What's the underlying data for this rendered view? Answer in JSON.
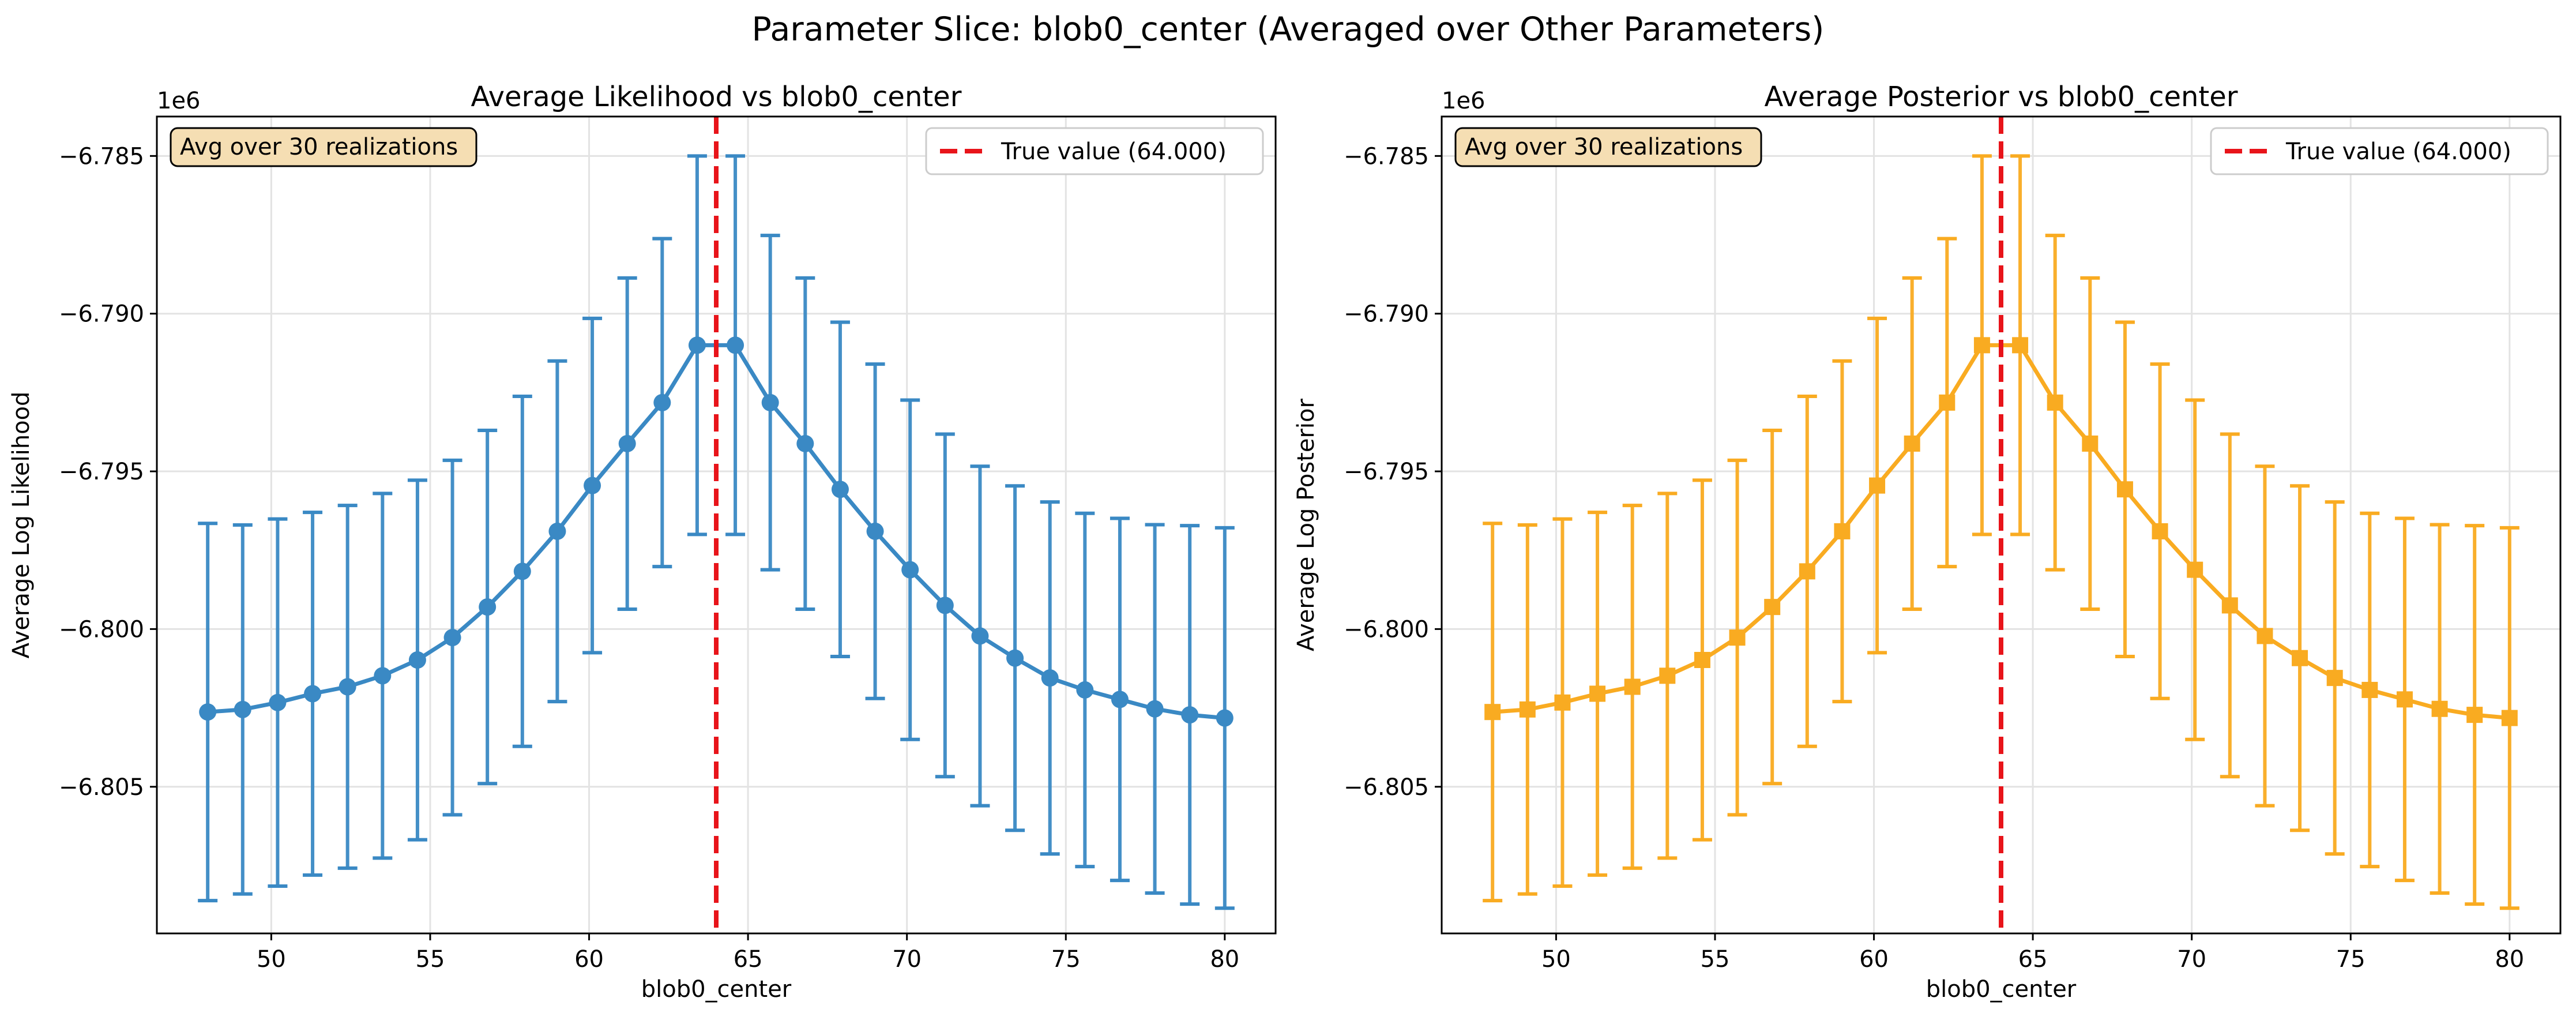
{
  "suptitle": "Parameter Slice: blob0_center (Averaged over Other Parameters)",
  "chart_data": [
    {
      "type": "line",
      "title": "Average Likelihood vs blob0_center",
      "xlabel": "blob0_center",
      "ylabel": "Average Log Likelihood",
      "offset_text": "1e6",
      "xlim": [
        46.4,
        81.6
      ],
      "ylim": [
        -6.80965,
        -6.78375
      ],
      "xticks": [
        50,
        55,
        60,
        65,
        70,
        75,
        80
      ],
      "yticks": [
        -6.805,
        -6.8,
        -6.795,
        -6.79,
        -6.785
      ],
      "ytick_labels": [
        "−6.805",
        "−6.800",
        "−6.795",
        "−6.790",
        "−6.785"
      ],
      "grid": true,
      "legend_position": "top-right",
      "annotation": "Avg over 30 realizations",
      "color": "#3a89c4",
      "marker": "circle",
      "x": [
        48.0,
        49.1,
        50.2,
        51.3,
        52.4,
        53.5,
        54.6,
        55.7,
        56.8,
        57.9,
        59.0,
        60.1,
        61.2,
        62.3,
        63.4,
        64.6,
        65.7,
        66.8,
        67.9,
        69.0,
        70.1,
        71.2,
        72.3,
        73.4,
        74.5,
        75.6,
        76.7,
        77.8,
        78.9,
        80.0
      ],
      "y": [
        -6.80263,
        -6.80255,
        -6.80233,
        -6.80205,
        -6.80183,
        -6.80148,
        -6.80098,
        -6.80027,
        -6.7993,
        -6.79817,
        -6.7969,
        -6.79545,
        -6.79412,
        -6.79282,
        -6.791,
        -6.791,
        -6.79282,
        -6.79412,
        -6.79557,
        -6.7969,
        -6.79812,
        -6.79925,
        -6.80022,
        -6.80092,
        -6.80155,
        -6.80193,
        -6.80223,
        -6.80253,
        -6.80272,
        -6.80282
      ],
      "yerr": [
        0.00598,
        0.00585,
        0.00582,
        0.00575,
        0.00575,
        0.00578,
        0.0057,
        0.00562,
        0.0056,
        0.00555,
        0.0054,
        0.0053,
        0.00525,
        0.0052,
        0.006,
        0.006,
        0.0053,
        0.00525,
        0.0053,
        0.0053,
        0.00538,
        0.00543,
        0.00538,
        0.00546,
        0.00558,
        0.0056,
        0.00574,
        0.00584,
        0.006,
        0.00603
      ],
      "reference_line": {
        "x": 64.0,
        "color": "#e8141a",
        "label": "True value (64.000)"
      }
    },
    {
      "type": "line",
      "title": "Average Posterior vs blob0_center",
      "xlabel": "blob0_center",
      "ylabel": "Average Log Posterior",
      "offset_text": "1e6",
      "xlim": [
        46.4,
        81.6
      ],
      "ylim": [
        -6.80965,
        -6.78375
      ],
      "xticks": [
        50,
        55,
        60,
        65,
        70,
        75,
        80
      ],
      "yticks": [
        -6.805,
        -6.8,
        -6.795,
        -6.79,
        -6.785
      ],
      "ytick_labels": [
        "−6.805",
        "−6.800",
        "−6.795",
        "−6.790",
        "−6.785"
      ],
      "grid": true,
      "legend_position": "top-right",
      "annotation": "Avg over 30 realizations",
      "color": "#f9ab21",
      "marker": "square",
      "x": [
        48.0,
        49.1,
        50.2,
        51.3,
        52.4,
        53.5,
        54.6,
        55.7,
        56.8,
        57.9,
        59.0,
        60.1,
        61.2,
        62.3,
        63.4,
        64.6,
        65.7,
        66.8,
        67.9,
        69.0,
        70.1,
        71.2,
        72.3,
        73.4,
        74.5,
        75.6,
        76.7,
        77.8,
        78.9,
        80.0
      ],
      "y": [
        -6.80263,
        -6.80255,
        -6.80233,
        -6.80205,
        -6.80183,
        -6.80148,
        -6.80098,
        -6.80027,
        -6.7993,
        -6.79817,
        -6.7969,
        -6.79545,
        -6.79412,
        -6.79282,
        -6.791,
        -6.791,
        -6.79282,
        -6.79412,
        -6.79557,
        -6.7969,
        -6.79812,
        -6.79925,
        -6.80022,
        -6.80092,
        -6.80155,
        -6.80193,
        -6.80223,
        -6.80253,
        -6.80272,
        -6.80282
      ],
      "yerr": [
        0.00598,
        0.00585,
        0.00582,
        0.00575,
        0.00575,
        0.00578,
        0.0057,
        0.00562,
        0.0056,
        0.00555,
        0.0054,
        0.0053,
        0.00525,
        0.0052,
        0.006,
        0.006,
        0.0053,
        0.00525,
        0.0053,
        0.0053,
        0.00538,
        0.00543,
        0.00538,
        0.00546,
        0.00558,
        0.0056,
        0.00574,
        0.00584,
        0.006,
        0.00603
      ],
      "reference_line": {
        "x": 64.0,
        "color": "#e8141a",
        "label": "True value (64.000)"
      }
    }
  ]
}
